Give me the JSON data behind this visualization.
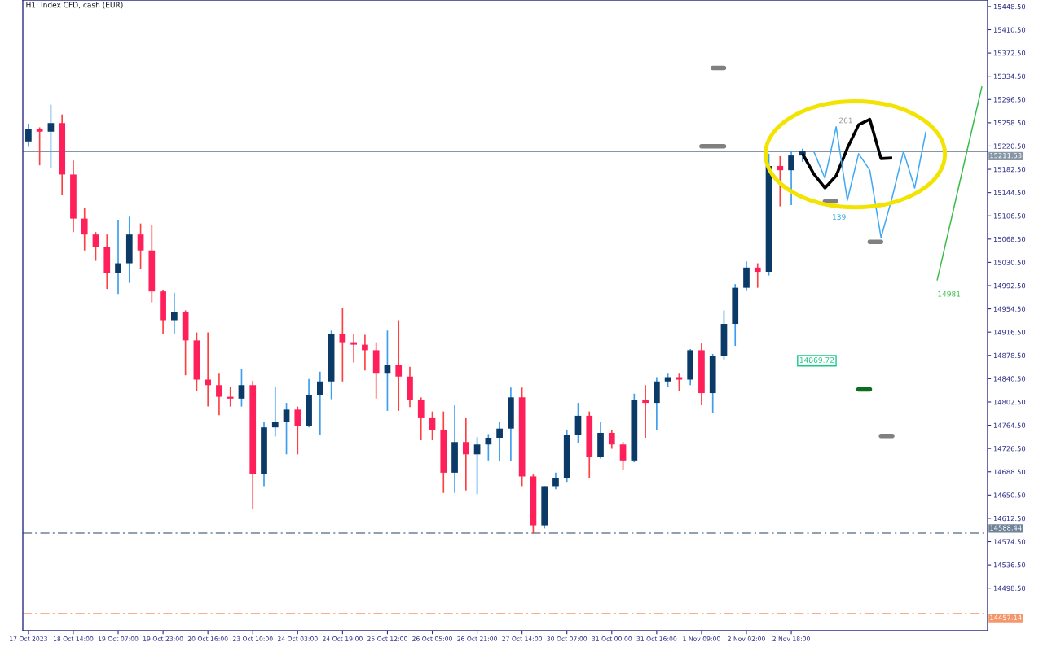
{
  "chart_data": {
    "type": "candlestick",
    "title": "H1: Index CFD, cash (EUR)",
    "categories": [
      "17 Oct 2023",
      null,
      null,
      null,
      "18 Oct 14:00",
      null,
      null,
      null,
      "19 Oct 07:00",
      null,
      null,
      null,
      "19 Oct 23:00",
      null,
      null,
      null,
      "20 Oct 16:00",
      null,
      null,
      null,
      "23 Oct 10:00",
      null,
      null,
      null,
      "24 Oct 03:00",
      null,
      null,
      null,
      "24 Oct 19:00",
      null,
      null,
      null,
      "25 Oct 12:00",
      null,
      null,
      null,
      "26 Oct 05:00",
      null,
      null,
      null,
      "26 Oct 21:00",
      null,
      null,
      null,
      "27 Oct 14:00",
      null,
      null,
      null,
      "30 Oct 07:00",
      null,
      null,
      null,
      "31 Oct 00:00",
      null,
      null,
      null,
      "31 Oct 16:00",
      null,
      null,
      null,
      "1 Nov 09:00",
      null,
      null,
      null,
      "2 Nov 02:00",
      null,
      null,
      null,
      "2 Nov 18:00",
      null,
      null,
      null,
      null,
      null,
      null,
      null,
      null,
      null,
      null,
      null,
      null,
      null,
      null,
      null,
      null,
      null
    ],
    "ohlc": [
      [
        15228,
        15257,
        15219,
        15248
      ],
      [
        15248,
        15251,
        15189,
        15244
      ],
      [
        15244,
        15288,
        15185,
        15258
      ],
      [
        15258,
        15272,
        15140,
        15174
      ],
      [
        15174,
        15197,
        15080,
        15102
      ],
      [
        15102,
        15119,
        15050,
        15076
      ],
      [
        15076,
        15080,
        15033,
        15056
      ],
      [
        15056,
        15076,
        14987,
        15013
      ],
      [
        15013,
        15100,
        14979,
        15029
      ],
      [
        15029,
        15105,
        14997,
        15076
      ],
      [
        15076,
        15094,
        15020,
        15050
      ],
      [
        15050,
        15092,
        14965,
        14983
      ],
      [
        14983,
        14986,
        14914,
        14936
      ],
      [
        14936,
        14981,
        14914,
        14949
      ],
      [
        14949,
        14952,
        14846,
        14903
      ],
      [
        14903,
        14916,
        14821,
        14839
      ],
      [
        14839,
        14916,
        14795,
        14830
      ],
      [
        14830,
        14850,
        14781,
        14811
      ],
      [
        14811,
        14827,
        14795,
        14808
      ],
      [
        14808,
        14857,
        14795,
        14830
      ],
      [
        14830,
        14837,
        14627,
        14685
      ],
      [
        14685,
        14770,
        14665,
        14761
      ],
      [
        14761,
        14827,
        14746,
        14770
      ],
      [
        14770,
        14801,
        14717,
        14790
      ],
      [
        14790,
        14795,
        14717,
        14763
      ],
      [
        14763,
        14840,
        14761,
        14814
      ],
      [
        14814,
        14852,
        14748,
        14836
      ],
      [
        14836,
        14919,
        14807,
        14914
      ],
      [
        14914,
        14956,
        14836,
        14900
      ],
      [
        14900,
        14914,
        14867,
        14896
      ],
      [
        14896,
        14912,
        14854,
        14887
      ],
      [
        14887,
        14900,
        14808,
        14850
      ],
      [
        14850,
        14919,
        14788,
        14863
      ],
      [
        14863,
        14936,
        14788,
        14844
      ],
      [
        14844,
        14860,
        14794,
        14806
      ],
      [
        14806,
        14810,
        14740,
        14776
      ],
      [
        14776,
        14787,
        14740,
        14756
      ],
      [
        14756,
        14787,
        14654,
        14687
      ],
      [
        14687,
        14797,
        14654,
        14737
      ],
      [
        14737,
        14776,
        14658,
        14717
      ],
      [
        14717,
        14745,
        14652,
        14733
      ],
      [
        14733,
        14750,
        14707,
        14744
      ],
      [
        14744,
        14770,
        14706,
        14759
      ],
      [
        14759,
        14826,
        14706,
        14810
      ],
      [
        14810,
        14826,
        14665,
        14681
      ],
      [
        14681,
        14684,
        14588,
        14601
      ],
      [
        14601,
        14665,
        14596,
        14665
      ],
      [
        14665,
        14687,
        14660,
        14678
      ],
      [
        14678,
        14757,
        14672,
        14748
      ],
      [
        14748,
        14801,
        14735,
        14780
      ],
      [
        14780,
        14787,
        14678,
        14713
      ],
      [
        14713,
        14770,
        14710,
        14752
      ],
      [
        14752,
        14756,
        14726,
        14733
      ],
      [
        14733,
        14737,
        14691,
        14707
      ],
      [
        14707,
        14816,
        14704,
        14806
      ],
      [
        14806,
        14830,
        14744,
        14801
      ],
      [
        14801,
        14843,
        14757,
        14836
      ],
      [
        14836,
        14850,
        14827,
        14843
      ],
      [
        14843,
        14850,
        14821,
        14839
      ],
      [
        14839,
        14889,
        14830,
        14887
      ],
      [
        14887,
        14898,
        14797,
        14817
      ],
      [
        14817,
        14881,
        14784,
        14877
      ],
      [
        14877,
        14952,
        14872,
        14930
      ],
      [
        14930,
        14995,
        14894,
        14989
      ],
      [
        14989,
        15032,
        14985,
        15022
      ],
      [
        15022,
        15029,
        14989,
        15015
      ],
      [
        15015,
        15208,
        15009,
        15188
      ],
      [
        15188,
        15204,
        15122,
        15181
      ],
      [
        15181,
        15212,
        15124,
        15205
      ],
      [
        15205,
        15216,
        15195,
        15212
      ],
      null,
      null,
      null,
      null,
      null,
      null,
      null,
      null,
      null,
      null,
      null,
      null,
      null,
      null,
      null,
      null
    ],
    "series": [
      {
        "type": "line",
        "color": "#000000",
        "values": [
          null,
          null,
          null,
          null,
          null,
          null,
          null,
          null,
          null,
          null,
          null,
          null,
          null,
          null,
          null,
          null,
          null,
          null,
          null,
          null,
          null,
          null,
          null,
          null,
          null,
          null,
          null,
          null,
          null,
          null,
          null,
          null,
          null,
          null,
          null,
          null,
          null,
          null,
          null,
          null,
          null,
          null,
          null,
          null,
          null,
          null,
          null,
          null,
          null,
          null,
          null,
          null,
          null,
          null,
          null,
          null,
          null,
          null,
          null,
          null,
          null,
          null,
          null,
          null,
          null,
          null,
          null,
          null,
          null,
          15208,
          15175,
          15152,
          15172,
          15217,
          15255,
          15264,
          15200,
          15201,
          null,
          null,
          null,
          null,
          null,
          null,
          null,
          null
        ]
      },
      {
        "type": "line",
        "color": "#3fa9f5",
        "values": [
          null,
          null,
          null,
          null,
          null,
          null,
          null,
          null,
          null,
          null,
          null,
          null,
          null,
          null,
          null,
          null,
          null,
          null,
          null,
          null,
          null,
          null,
          null,
          null,
          null,
          null,
          null,
          null,
          null,
          null,
          null,
          null,
          null,
          null,
          null,
          null,
          null,
          null,
          null,
          null,
          null,
          null,
          null,
          null,
          null,
          null,
          null,
          null,
          null,
          null,
          null,
          null,
          null,
          null,
          null,
          null,
          null,
          null,
          null,
          null,
          null,
          null,
          null,
          null,
          null,
          null,
          null,
          null,
          null,
          null,
          15212,
          15168,
          15252,
          15132,
          15208,
          15181,
          15071,
          15137,
          15212,
          15152,
          15244,
          null,
          null,
          null,
          null,
          null
        ]
      },
      {
        "type": "line",
        "color": "#808080",
        "values": [
          null,
          null,
          null,
          null,
          null,
          null,
          null,
          null,
          null,
          null,
          null,
          null,
          null,
          null,
          null,
          null,
          null,
          null,
          null,
          null,
          null,
          null,
          null,
          null,
          null,
          null,
          null,
          null,
          null,
          null,
          null,
          null,
          null,
          null,
          null,
          null,
          null,
          null,
          null,
          null,
          null,
          null,
          null,
          null,
          null,
          null,
          null,
          null,
          null,
          null,
          null,
          null,
          null,
          null,
          null,
          null,
          null,
          null,
          null,
          null,
          null,
          15348,
          15348,
          null,
          null,
          null,
          null,
          null,
          null,
          null,
          null,
          null,
          null,
          null,
          null,
          null,
          null,
          null,
          null,
          null,
          null,
          null,
          null,
          null,
          null,
          null
        ]
      },
      {
        "type": "line",
        "color": "#808080",
        "values": [
          null,
          null,
          null,
          null,
          null,
          null,
          null,
          null,
          null,
          null,
          null,
          null,
          null,
          null,
          null,
          null,
          null,
          null,
          null,
          null,
          null,
          null,
          null,
          null,
          null,
          null,
          null,
          null,
          null,
          null,
          null,
          null,
          null,
          null,
          null,
          null,
          null,
          null,
          null,
          null,
          null,
          null,
          null,
          null,
          null,
          null,
          null,
          null,
          null,
          null,
          null,
          null,
          null,
          null,
          null,
          null,
          null,
          null,
          null,
          null,
          15220,
          15220,
          15220,
          null,
          null,
          null,
          null,
          null,
          null,
          null,
          null,
          null,
          null,
          null,
          null,
          null,
          null,
          null,
          null,
          null,
          null,
          null,
          null,
          null,
          null,
          null
        ]
      },
      {
        "type": "line",
        "color": "#808080",
        "values": [
          null,
          null,
          null,
          null,
          null,
          null,
          null,
          null,
          null,
          null,
          null,
          null,
          null,
          null,
          null,
          null,
          null,
          null,
          null,
          null,
          null,
          null,
          null,
          null,
          null,
          null,
          null,
          null,
          null,
          null,
          null,
          null,
          null,
          null,
          null,
          null,
          null,
          null,
          null,
          null,
          null,
          null,
          null,
          null,
          null,
          null,
          null,
          null,
          null,
          null,
          null,
          null,
          null,
          null,
          null,
          null,
          null,
          null,
          null,
          null,
          null,
          null,
          null,
          null,
          null,
          null,
          null,
          null,
          null,
          null,
          null,
          15130,
          15130,
          null,
          null,
          null,
          null,
          null,
          null,
          null,
          null,
          null,
          null,
          null,
          null,
          null
        ]
      },
      {
        "type": "line",
        "color": "#808080",
        "values": [
          null,
          null,
          null,
          null,
          null,
          null,
          null,
          null,
          null,
          null,
          null,
          null,
          null,
          null,
          null,
          null,
          null,
          null,
          null,
          null,
          null,
          null,
          null,
          null,
          null,
          null,
          null,
          null,
          null,
          null,
          null,
          null,
          null,
          null,
          null,
          null,
          null,
          null,
          null,
          null,
          null,
          null,
          null,
          null,
          null,
          null,
          null,
          null,
          null,
          null,
          null,
          null,
          null,
          null,
          null,
          null,
          null,
          null,
          null,
          null,
          null,
          null,
          null,
          null,
          null,
          null,
          null,
          null,
          null,
          null,
          null,
          null,
          null,
          null,
          null,
          15064,
          15064,
          null,
          null,
          null,
          null,
          null,
          null,
          null,
          null,
          null
        ]
      },
      {
        "type": "line",
        "color": "#808080",
        "values": [
          null,
          null,
          null,
          null,
          null,
          null,
          null,
          null,
          null,
          null,
          null,
          null,
          null,
          null,
          null,
          null,
          null,
          null,
          null,
          null,
          null,
          null,
          null,
          null,
          null,
          null,
          null,
          null,
          null,
          null,
          null,
          null,
          null,
          null,
          null,
          null,
          null,
          null,
          null,
          null,
          null,
          null,
          null,
          null,
          null,
          null,
          null,
          null,
          null,
          null,
          null,
          null,
          null,
          null,
          null,
          null,
          null,
          null,
          null,
          null,
          null,
          null,
          null,
          null,
          null,
          null,
          null,
          null,
          null,
          null,
          null,
          null,
          null,
          null,
          null,
          null,
          14747,
          14747,
          null,
          null,
          null,
          null,
          null,
          null,
          null,
          null
        ]
      },
      {
        "type": "line",
        "color": "#0a6e1e",
        "values": [
          null,
          null,
          null,
          null,
          null,
          null,
          null,
          null,
          null,
          null,
          null,
          null,
          null,
          null,
          null,
          null,
          null,
          null,
          null,
          null,
          null,
          null,
          null,
          null,
          null,
          null,
          null,
          null,
          null,
          null,
          null,
          null,
          null,
          null,
          null,
          null,
          null,
          null,
          null,
          null,
          null,
          null,
          null,
          null,
          null,
          null,
          null,
          null,
          null,
          null,
          null,
          null,
          null,
          null,
          null,
          null,
          null,
          null,
          null,
          null,
          null,
          null,
          null,
          null,
          null,
          null,
          null,
          null,
          null,
          null,
          null,
          null,
          null,
          null,
          14823,
          14823,
          null,
          null,
          null,
          null,
          null,
          null,
          null,
          null,
          null,
          null
        ]
      },
      {
        "type": "line",
        "color": "#3cbc4a",
        "values": [
          null,
          null,
          null,
          null,
          null,
          null,
          null,
          null,
          null,
          null,
          null,
          null,
          null,
          null,
          null,
          null,
          null,
          null,
          null,
          null,
          null,
          null,
          null,
          null,
          null,
          null,
          null,
          null,
          null,
          null,
          null,
          null,
          null,
          null,
          null,
          null,
          null,
          null,
          null,
          null,
          null,
          null,
          null,
          null,
          null,
          null,
          null,
          null,
          null,
          null,
          null,
          null,
          null,
          null,
          null,
          null,
          null,
          null,
          null,
          null,
          null,
          null,
          null,
          null,
          null,
          null,
          null,
          null,
          null,
          null,
          null,
          null,
          null,
          null,
          null,
          null,
          null,
          null,
          null,
          null,
          null,
          15001,
          15080,
          15160,
          15239,
          15318
        ]
      }
    ],
    "ylim": [
      14429,
      15459
    ],
    "yticks": [
      {
        "value": 14498.5,
        "label": "14498.50"
      },
      {
        "value": 14536.5,
        "label": "14536.50"
      },
      {
        "value": 14574.5,
        "label": "14574.50"
      },
      {
        "value": 14612.5,
        "label": "14612.50"
      },
      {
        "value": 14650.5,
        "label": "14650.50"
      },
      {
        "value": 14688.5,
        "label": "14688.50"
      },
      {
        "value": 14726.5,
        "label": "14726.50"
      },
      {
        "value": 14764.5,
        "label": "14764.50"
      },
      {
        "value": 14802.5,
        "label": "14802.50"
      },
      {
        "value": 14840.5,
        "label": "14840.50"
      },
      {
        "value": 14878.5,
        "label": "14878.50"
      },
      {
        "value": 14916.5,
        "label": "14916.50"
      },
      {
        "value": 14954.5,
        "label": "14954.50"
      },
      {
        "value": 14992.5,
        "label": "14992.50"
      },
      {
        "value": 15030.5,
        "label": "15030.50"
      },
      {
        "value": 15068.5,
        "label": "15068.50"
      },
      {
        "value": 15106.5,
        "label": "15106.50"
      },
      {
        "value": 15144.5,
        "label": "15144.50"
      },
      {
        "value": 15182.5,
        "label": "15182.50"
      },
      {
        "value": 15220.5,
        "label": "15220.50"
      },
      {
        "value": 15258.5,
        "label": "15258.50"
      },
      {
        "value": 15296.5,
        "label": "15296.50"
      },
      {
        "value": 15334.5,
        "label": "15334.50"
      },
      {
        "value": 15372.5,
        "label": "15372.50"
      },
      {
        "value": 15410.5,
        "label": "15410.50"
      },
      {
        "value": 15448.5,
        "label": "15448.50"
      }
    ],
    "ref_lines": [
      {
        "axis": "y",
        "value": 15211.53,
        "label": "15211.53",
        "color": "#8796a5",
        "line_style": "solid"
      },
      {
        "axis": "y",
        "value": 14588.44,
        "label": "14588.44",
        "color": "#6f8296",
        "line_style": "dashed"
      },
      {
        "axis": "y",
        "value": 14457.14,
        "label": "14457.14",
        "color": "#f4976c",
        "line_style": "dashed"
      }
    ],
    "annotations": [
      "261",
      "139",
      "14981",
      "14869.72"
    ]
  }
}
